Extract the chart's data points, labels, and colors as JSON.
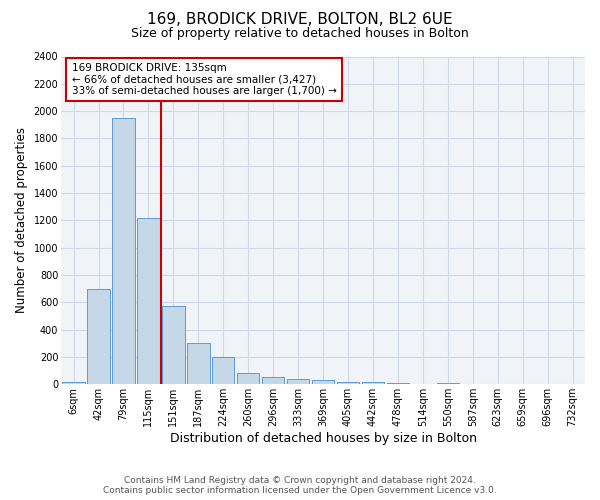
{
  "title1": "169, BRODICK DRIVE, BOLTON, BL2 6UE",
  "title2": "Size of property relative to detached houses in Bolton",
  "xlabel": "Distribution of detached houses by size in Bolton",
  "ylabel": "Number of detached properties",
  "categories": [
    "6sqm",
    "42sqm",
    "79sqm",
    "115sqm",
    "151sqm",
    "187sqm",
    "224sqm",
    "260sqm",
    "296sqm",
    "333sqm",
    "369sqm",
    "405sqm",
    "442sqm",
    "478sqm",
    "514sqm",
    "550sqm",
    "587sqm",
    "623sqm",
    "659sqm",
    "696sqm",
    "732sqm"
  ],
  "values": [
    15,
    700,
    1950,
    1220,
    570,
    305,
    200,
    80,
    55,
    38,
    28,
    20,
    15,
    10,
    5,
    8,
    4,
    2,
    3,
    1,
    2
  ],
  "bar_color": "#c5d8e8",
  "bar_edge_color": "#5b9bd5",
  "grid_color": "#d0d8e8",
  "vline_color": "#cc0000",
  "vline_pos": 3.5,
  "annotation_title": "169 BRODICK DRIVE: 135sqm",
  "annotation_line2": "← 66% of detached houses are smaller (3,427)",
  "annotation_line3": "33% of semi-detached houses are larger (1,700) →",
  "annotation_box_color": "#cc0000",
  "footer1": "Contains HM Land Registry data © Crown copyright and database right 2024.",
  "footer2": "Contains public sector information licensed under the Open Government Licence v3.0.",
  "ylim": [
    0,
    2400
  ],
  "yticks": [
    0,
    200,
    400,
    600,
    800,
    1000,
    1200,
    1400,
    1600,
    1800,
    2000,
    2200,
    2400
  ],
  "title1_fontsize": 11,
  "title2_fontsize": 9,
  "ylabel_fontsize": 8.5,
  "xlabel_fontsize": 9,
  "tick_fontsize": 7,
  "footer_fontsize": 6.5,
  "ann_fontsize": 7.5,
  "bg_color": "#f0f4f8"
}
